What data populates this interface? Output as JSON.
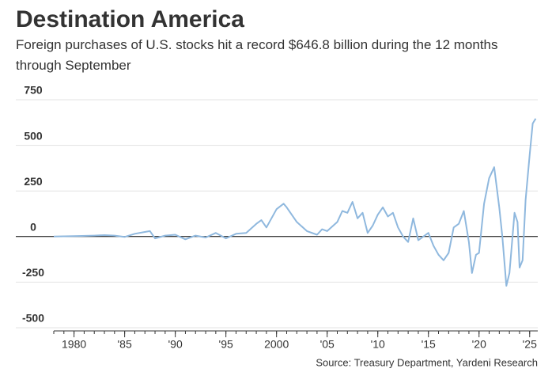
{
  "chart_data": {
    "type": "line",
    "title": "Destination America",
    "subtitle": "Foreign purchases of U.S. stocks hit a record $646.8 billion during the 12 months through September",
    "source": "Source: Treasury Department, Yardeni Research",
    "x": [
      1978,
      1980,
      1982,
      1983,
      1984,
      1985,
      1986,
      1987,
      1987.5,
      1988,
      1989,
      1990,
      1991,
      1992,
      1993,
      1994,
      1995,
      1996,
      1997,
      1998,
      1998.5,
      1999,
      2000,
      2000.7,
      2001,
      2002,
      2003,
      2004,
      2004.5,
      2005,
      2006,
      2006.5,
      2007,
      2007.5,
      2008,
      2008.5,
      2009,
      2009.5,
      2010,
      2010.5,
      2011,
      2011.5,
      2012,
      2012.5,
      2013,
      2013.5,
      2014,
      2014.5,
      2015,
      2015.5,
      2016,
      2016.5,
      2017,
      2017.5,
      2018,
      2018.5,
      2019,
      2019.3,
      2019.7,
      2020,
      2020.5,
      2021,
      2021.5,
      2022,
      2022.3,
      2022.7,
      2023,
      2023.5,
      2023.8,
      2024,
      2024.3,
      2024.6,
      2025,
      2025.3,
      2025.6
    ],
    "series": [
      {
        "name": "Foreign purchases of U.S. stocks",
        "color": "#8fb8de",
        "values": [
          0,
          2,
          5,
          8,
          5,
          -2,
          15,
          25,
          30,
          -10,
          5,
          10,
          -15,
          5,
          -5,
          20,
          -10,
          15,
          20,
          70,
          90,
          50,
          150,
          180,
          160,
          80,
          30,
          10,
          40,
          30,
          80,
          140,
          130,
          190,
          100,
          130,
          20,
          60,
          120,
          160,
          110,
          130,
          50,
          0,
          -30,
          100,
          -20,
          0,
          20,
          -50,
          -100,
          -130,
          -90,
          50,
          70,
          140,
          -30,
          -200,
          -100,
          -90,
          180,
          320,
          380,
          160,
          0,
          -270,
          -200,
          130,
          80,
          -170,
          -130,
          200,
          450,
          620,
          646.8
        ]
      }
    ],
    "xlim": [
      1978,
      2025.8
    ],
    "xticks": [
      1980,
      {
        "value": 1985,
        "label": "'85"
      },
      {
        "value": 1990,
        "label": "'90"
      },
      {
        "value": 1995,
        "label": "'95"
      },
      2000,
      {
        "value": 2005,
        "label": "'05"
      },
      {
        "value": 2010,
        "label": "'10"
      },
      {
        "value": 2015,
        "label": "'15"
      },
      {
        "value": 2020,
        "label": "'20"
      },
      {
        "value": 2025,
        "label": "'25"
      }
    ],
    "ylim": [
      -500,
      750
    ],
    "yticks": [
      750,
      500,
      250,
      0,
      -250,
      -500
    ],
    "grid": true
  }
}
